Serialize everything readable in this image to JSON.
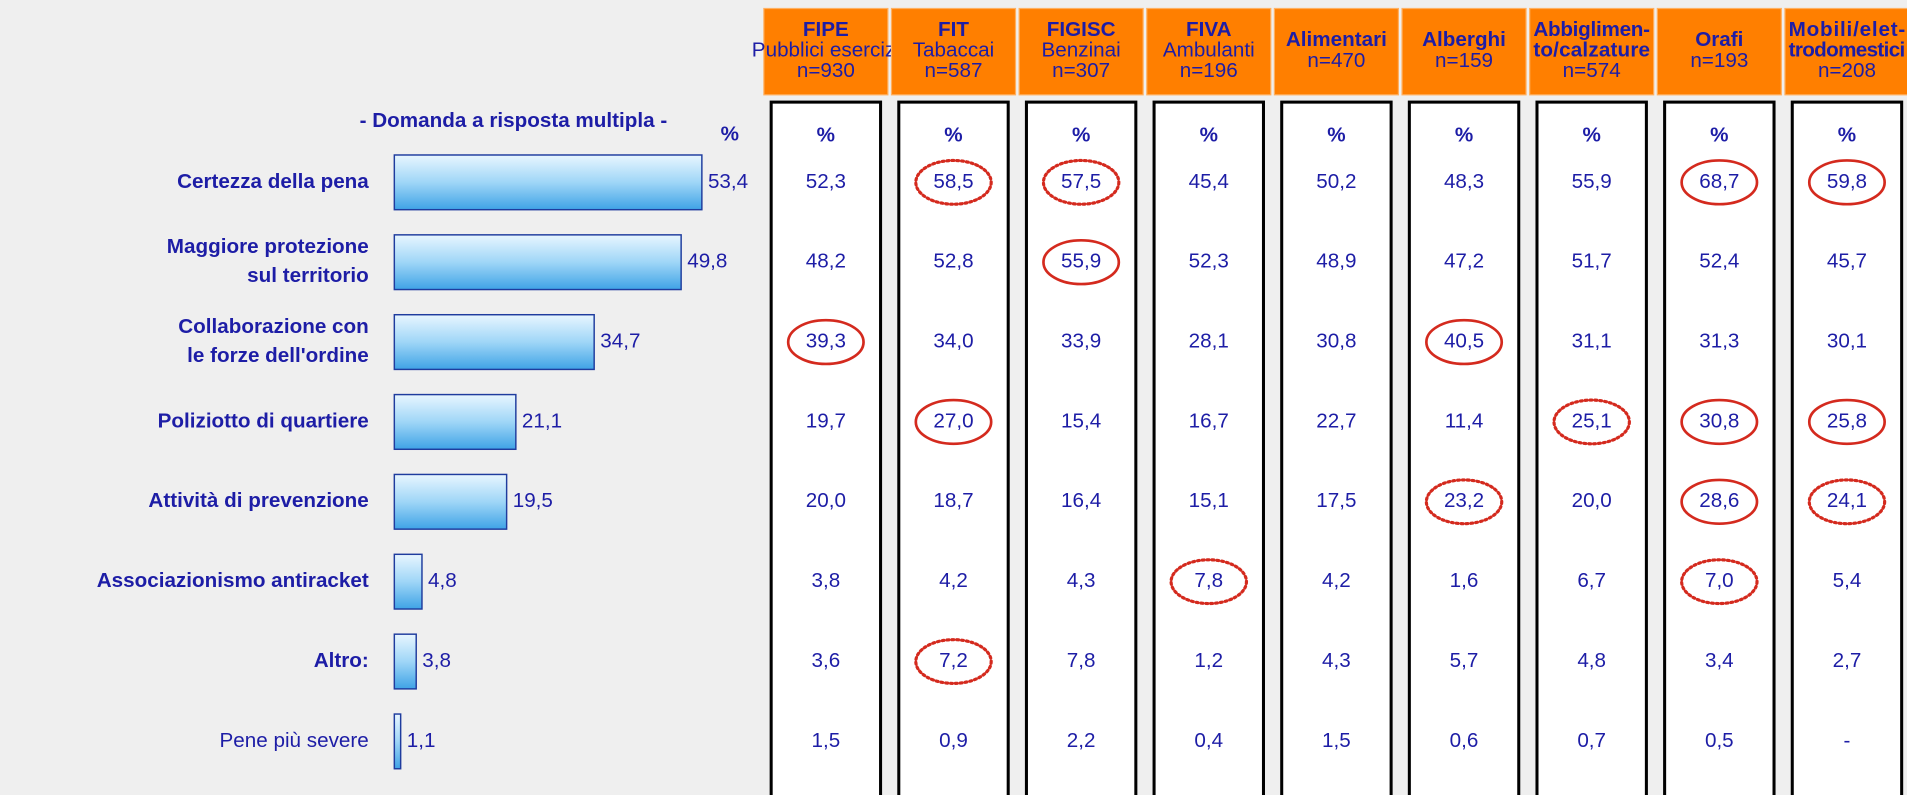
{
  "chart_data": {
    "type": "hbar",
    "subtitle": "- Domanda a risposta multipla -",
    "unit_header": "%",
    "categories": [
      [
        "Certezza della pena"
      ],
      [
        "Maggiore protezione",
        "sul territorio"
      ],
      [
        "Collaborazione con",
        "le forze dell'ordine"
      ],
      [
        "Poliziotto di quartiere"
      ],
      [
        "Attività di prevenzione"
      ],
      [
        "Associazionismo antiracket"
      ],
      [
        "Altro:"
      ],
      [
        "Pene più severe"
      ]
    ],
    "category_bold": [
      true,
      true,
      true,
      true,
      true,
      true,
      true,
      false
    ],
    "values": [
      53.4,
      49.8,
      34.7,
      21.1,
      19.5,
      4.8,
      3.8,
      1.1
    ],
    "value_labels": [
      "53,4",
      "49,8",
      "34,7",
      "21,1",
      "19,5",
      "4,8",
      "3,8",
      "1,1"
    ],
    "color": "#5ab4ec"
  },
  "table": {
    "columns": [
      {
        "title": [
          "FIPE"
        ],
        "lines": [
          "Pubblici esercizi",
          "n=930"
        ]
      },
      {
        "title": [
          "FIT"
        ],
        "lines": [
          "Tabaccai",
          "n=587"
        ]
      },
      {
        "title": [
          "FIGISC"
        ],
        "lines": [
          "Benzinai",
          "n=307"
        ]
      },
      {
        "title": [
          "FIVA"
        ],
        "lines": [
          "Ambulanti",
          "n=196"
        ]
      },
      {
        "title": [
          "Alimentari"
        ],
        "lines": [
          "n=470"
        ]
      },
      {
        "title": [
          "Alberghi"
        ],
        "lines": [
          "n=159"
        ]
      },
      {
        "title": [
          "Abbiglimen-",
          "to/calzature"
        ],
        "lines": [
          "n=574"
        ]
      },
      {
        "title": [
          "Orafi"
        ],
        "lines": [
          "n=193"
        ]
      },
      {
        "title": [
          "Mobili/elet-",
          "trodomestici"
        ],
        "lines": [
          "n=208"
        ]
      }
    ],
    "unit_header": "%",
    "rows": [
      [
        "52,3",
        "58,5",
        "57,5",
        "45,4",
        "50,2",
        "48,3",
        "55,9",
        "68,7",
        "59,8"
      ],
      [
        "48,2",
        "52,8",
        "55,9",
        "52,3",
        "48,9",
        "47,2",
        "51,7",
        "52,4",
        "45,7"
      ],
      [
        "39,3",
        "34,0",
        "33,9",
        "28,1",
        "30,8",
        "40,5",
        "31,1",
        "31,3",
        "30,1"
      ],
      [
        "19,7",
        "27,0",
        "15,4",
        "16,7",
        "22,7",
        "11,4",
        "25,1",
        "30,8",
        "25,8"
      ],
      [
        "20,0",
        "18,7",
        "16,4",
        "15,1",
        "17,5",
        "23,2",
        "20,0",
        "28,6",
        "24,1"
      ],
      [
        "3,8",
        "4,2",
        "4,3",
        "7,8",
        "4,2",
        "1,6",
        "6,7",
        "7,0",
        "5,4"
      ],
      [
        "3,6",
        "7,2",
        "7,8",
        "1,2",
        "4,3",
        "5,7",
        "4,8",
        "3,4",
        "2,7"
      ],
      [
        "1,5",
        "0,9",
        "2,2",
        "0,4",
        "1,5",
        "0,6",
        "0,7",
        "0,5",
        "-"
      ]
    ],
    "highlights": [
      [
        null,
        "dotted",
        "dotted",
        null,
        null,
        null,
        null,
        "solid",
        "solid"
      ],
      [
        null,
        null,
        "solid",
        null,
        null,
        null,
        null,
        null,
        null
      ],
      [
        "solid",
        null,
        null,
        null,
        null,
        "solid",
        null,
        null,
        null
      ],
      [
        null,
        "solid",
        null,
        null,
        null,
        null,
        "dotted",
        "solid",
        "solid"
      ],
      [
        null,
        null,
        null,
        null,
        null,
        "dotted",
        null,
        "solid",
        "dotted"
      ],
      [
        null,
        null,
        null,
        "dotted",
        null,
        null,
        null,
        "dotted",
        null
      ],
      [
        null,
        "dotted",
        null,
        null,
        null,
        null,
        null,
        null,
        null
      ],
      [
        null,
        null,
        null,
        null,
        null,
        null,
        null,
        null,
        null
      ]
    ],
    "highlight_color": "#d42a1e"
  }
}
